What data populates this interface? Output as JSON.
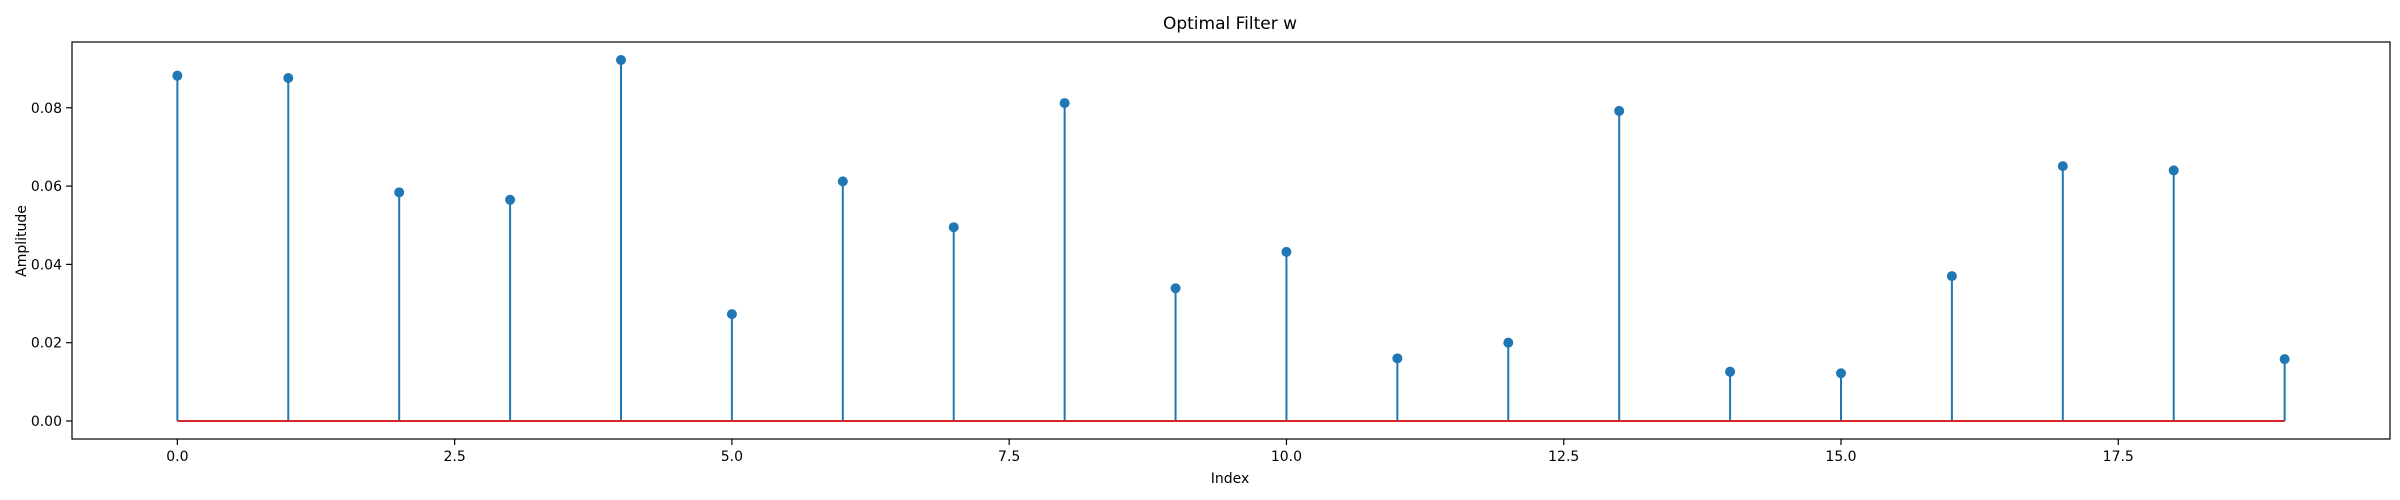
{
  "chart_data": {
    "type": "stem",
    "title": "Optimal Filter w",
    "xlabel": "Index",
    "ylabel": "Amplitude",
    "x": [
      0,
      1,
      2,
      3,
      4,
      5,
      6,
      7,
      8,
      9,
      10,
      11,
      12,
      13,
      14,
      15,
      16,
      17,
      18,
      19
    ],
    "values": [
      0.0882,
      0.0876,
      0.0584,
      0.0565,
      0.0922,
      0.0273,
      0.0612,
      0.0495,
      0.0812,
      0.0339,
      0.0432,
      0.016,
      0.02,
      0.0792,
      0.0126,
      0.0122,
      0.037,
      0.0651,
      0.064,
      0.0158
    ],
    "xlim": [
      -0.95,
      19.95
    ],
    "ylim": [
      -0.0046,
      0.0968
    ],
    "xticks": [
      0.0,
      2.5,
      5.0,
      7.5,
      10.0,
      12.5,
      15.0,
      17.5
    ],
    "xtick_labels": [
      "0.0",
      "2.5",
      "5.0",
      "7.5",
      "10.0",
      "12.5",
      "15.0",
      "17.5"
    ],
    "yticks": [
      0.0,
      0.02,
      0.04,
      0.06,
      0.08
    ],
    "ytick_labels": [
      "0.00",
      "0.02",
      "0.04",
      "0.06",
      "0.08"
    ],
    "grid": false,
    "colors": {
      "stem": "#1f77b4",
      "marker": "#1f77b4",
      "baseline": "#d62728"
    }
  }
}
